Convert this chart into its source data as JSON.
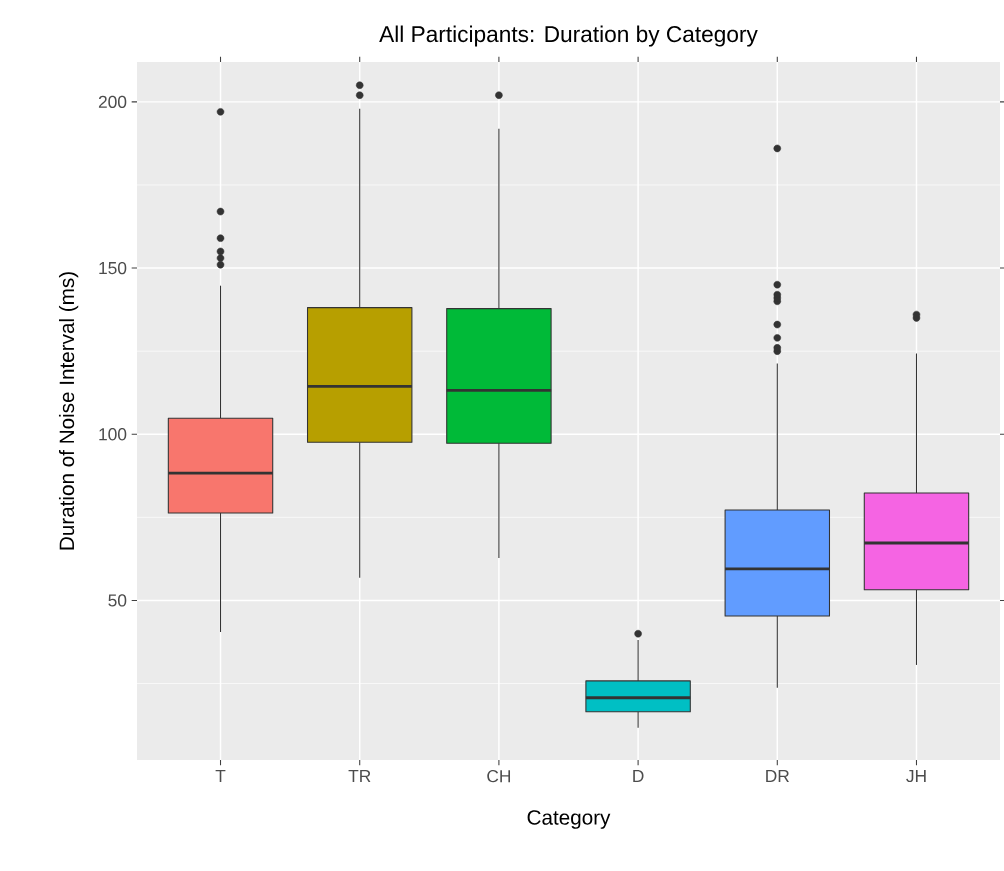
{
  "chart_data": {
    "type": "box",
    "title": "All Participants: Duration by Category",
    "xlabel": "Category",
    "ylabel": "Duration of Noise Interval (ms)",
    "categories": [
      "T",
      "TR",
      "CH",
      "D",
      "DR",
      "JH"
    ],
    "colors": [
      "#f8766d",
      "#b79f00",
      "#00ba38",
      "#00bfc4",
      "#619cff",
      "#f564e3"
    ],
    "boxes": [
      {
        "low": 40.5,
        "q1": 76.3,
        "median": 88.3,
        "q3": 104.8,
        "high": 144.7,
        "outliers": [
          151,
          153,
          155,
          159,
          167,
          197
        ]
      },
      {
        "low": 56.8,
        "q1": 97.6,
        "median": 114.4,
        "q3": 138.1,
        "high": 197.9,
        "outliers": [
          202,
          205
        ]
      },
      {
        "low": 62.8,
        "q1": 97.3,
        "median": 113.2,
        "q3": 137.8,
        "high": 191.9,
        "outliers": [
          202
        ]
      },
      {
        "low": 11.7,
        "q1": 16.5,
        "median": 20.7,
        "q3": 25.8,
        "high": 38.1,
        "outliers": [
          40
        ]
      },
      {
        "low": 23.7,
        "q1": 45.3,
        "median": 59.5,
        "q3": 77.2,
        "high": 121.3,
        "outliers": [
          125,
          126,
          129,
          133,
          140,
          141,
          142,
          145,
          186
        ]
      },
      {
        "low": 30.6,
        "q1": 53.2,
        "median": 67.3,
        "q3": 82.3,
        "high": 124.3,
        "outliers": [
          135,
          136
        ]
      }
    ],
    "ylim": [
      2,
      212
    ],
    "yticks": [
      50,
      100,
      150,
      200
    ],
    "grid": true
  }
}
